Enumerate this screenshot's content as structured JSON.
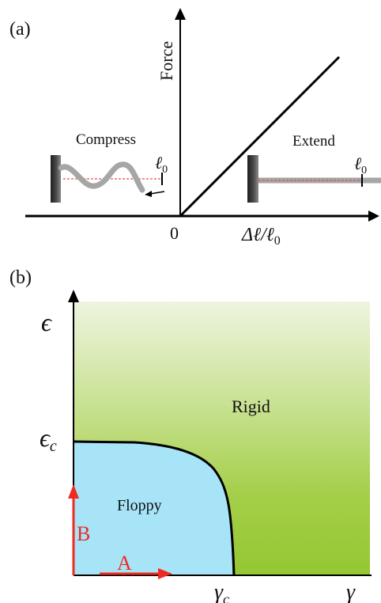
{
  "panel_a": {
    "label": "(a)",
    "y_axis_label": "Force",
    "x_axis_label": "Δℓ/ℓ",
    "x_axis_label_sub": "0",
    "origin_label": "0",
    "compress_label": "Compress",
    "extend_label": "Extend",
    "ell0_left": "ℓ",
    "ell0_left_sub": "0",
    "ell0_right": "ℓ",
    "ell0_right_sub": "0"
  },
  "panel_b": {
    "label": "(b)",
    "y_axis_label": "ϵ",
    "x_axis_label": "γ",
    "epsilon_c_label": "ϵ",
    "epsilon_c_sub": "c",
    "gamma_c_label": "γ",
    "gamma_c_sub": "c",
    "rigid_label": "Rigid",
    "floppy_label": "Floppy",
    "arrow_a_label": "A",
    "arrow_b_label": "B"
  },
  "colors": {
    "rigid_top": "#eef5e0",
    "rigid_bottom": "#94c731",
    "floppy": "#a8e4f8",
    "arrow_red": "#ee2b20",
    "wall_dark": "#3a3a3a",
    "spring_gray": "#a6a6a6",
    "dash_red": "#e05050"
  }
}
